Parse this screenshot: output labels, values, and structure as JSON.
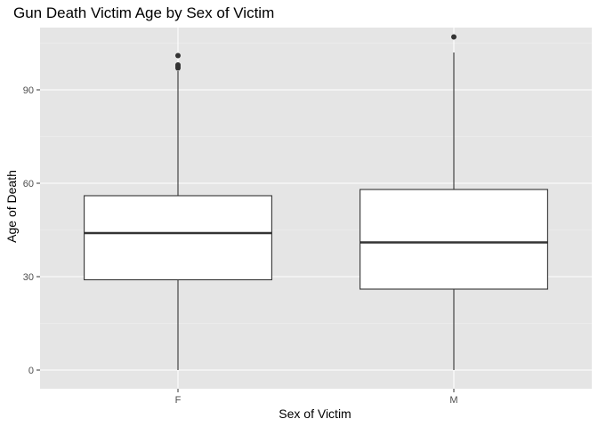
{
  "chart_data": {
    "type": "box",
    "title": "Gun Death Victim Age by Sex of Victim",
    "xlabel": "Sex of Victim",
    "ylabel": "Age of Death",
    "categories": [
      "F",
      "M"
    ],
    "ylim": [
      -6,
      110
    ],
    "yticks": [
      0,
      30,
      60,
      90
    ],
    "grid": true,
    "boxes": [
      {
        "category": "F",
        "whisker_low": 0,
        "q1": 29,
        "median": 44,
        "q3": 56,
        "whisker_high": 96,
        "outliers": [
          97,
          97.5,
          98,
          101
        ]
      },
      {
        "category": "M",
        "whisker_low": 0,
        "q1": 26,
        "median": 41,
        "q3": 58,
        "whisker_high": 102,
        "outliers": [
          107
        ]
      }
    ]
  },
  "colors": {
    "panel_background": "#e5e5e5",
    "grid_major": "#ffffff",
    "grid_minor": "#f2f2f2",
    "box_fill": "#ffffff",
    "box_stroke": "#333333",
    "outlier": "#333333",
    "tick_mark": "#333333"
  }
}
